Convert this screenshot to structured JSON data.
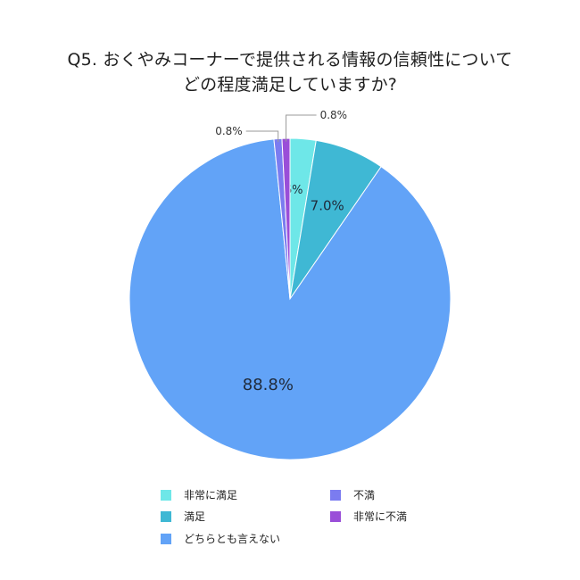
{
  "chart_data": {
    "type": "pie",
    "title": "Q5. おくやみコーナーで提供される情報の信頼性について",
    "subtitle": "どの程度満足していますか?",
    "slices": [
      {
        "label": "非常に満足",
        "value": 2.6,
        "display": "2.6%",
        "color": "#6ee7e8"
      },
      {
        "label": "満足",
        "value": 7.0,
        "display": "7.0%",
        "color": "#3fb8d4"
      },
      {
        "label": "どちらとも言えない",
        "value": 88.8,
        "display": "88.8%",
        "color": "#62a3f7"
      },
      {
        "label": "不満",
        "value": 0.8,
        "display": "0.8%",
        "color": "#7b7cf0"
      },
      {
        "label": "非常に不満",
        "value": 0.8,
        "display": "0.8%",
        "color": "#9a4ed8"
      }
    ],
    "legend_position": "bottom"
  }
}
